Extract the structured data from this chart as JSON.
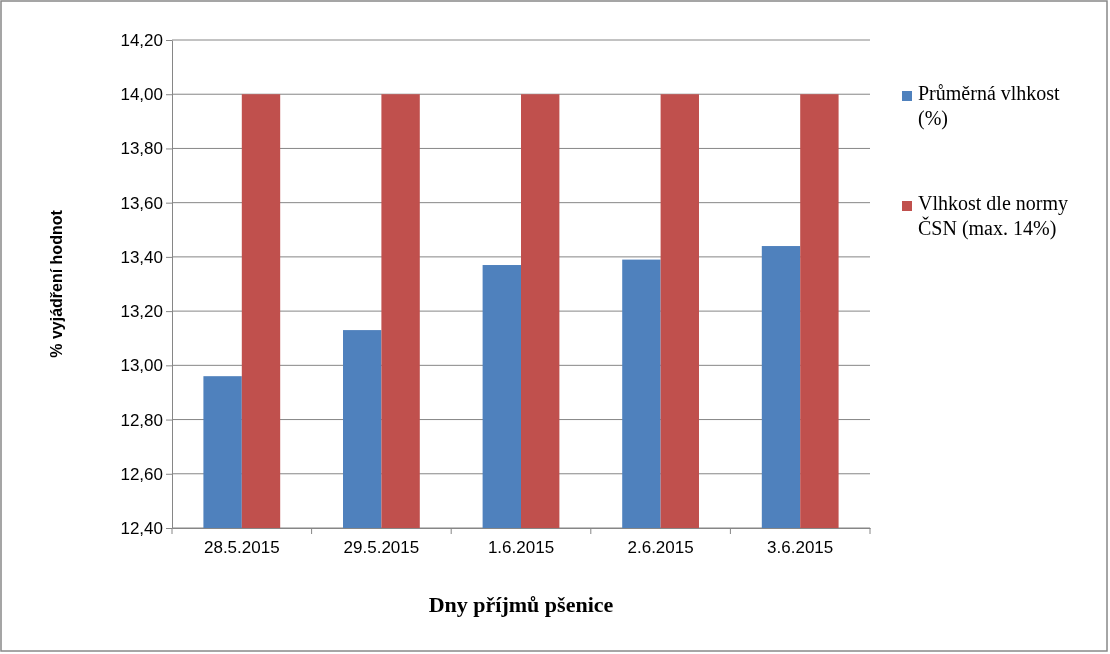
{
  "chart_data": {
    "type": "bar",
    "xlabel": "Dny příjmů pšenice",
    "ylabel": "% vyjádření hodnot",
    "categories": [
      "28.5.2015",
      "29.5.2015",
      "1.6.2015",
      "2.6.2015",
      "3.6.2015"
    ],
    "series": [
      {
        "name": "Průměrná vlhkost (%)",
        "color": "#4f81bd",
        "values": [
          12.96,
          13.13,
          13.37,
          13.39,
          13.44
        ]
      },
      {
        "name": "Vlhkost dle normy ČSN (max. 14%)",
        "color": "#c0504d",
        "values": [
          14,
          14,
          14,
          14,
          14
        ]
      }
    ],
    "ylim": [
      12.4,
      14.2
    ],
    "yticks": [
      {
        "value": 12.4,
        "label": "12,40"
      },
      {
        "value": 12.6,
        "label": "12,60"
      },
      {
        "value": 12.8,
        "label": "12,80"
      },
      {
        "value": 13,
        "label": "13,00"
      },
      {
        "value": 13.2,
        "label": "13,20"
      },
      {
        "value": 13.4,
        "label": "13,40"
      },
      {
        "value": 13.6,
        "label": "13,60"
      },
      {
        "value": 13.8,
        "label": "13,80"
      },
      {
        "value": 14,
        "label": "14,00"
      },
      {
        "value": 14.2,
        "label": "14,20"
      }
    ],
    "grid": "y",
    "legend": "right"
  }
}
